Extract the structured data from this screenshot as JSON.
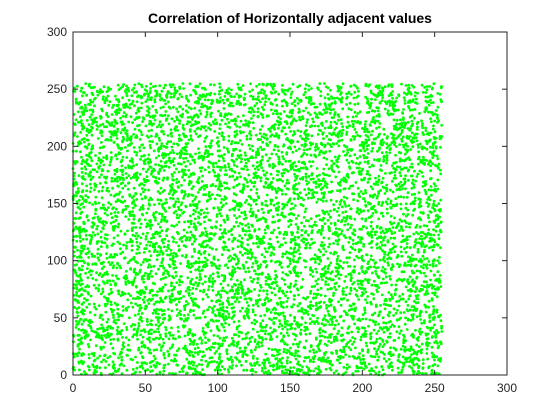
{
  "chart_data": {
    "type": "scatter",
    "title": "Correlation of Horizontally adjacent values",
    "xlabel": "",
    "ylabel": "",
    "xlim": [
      0,
      300
    ],
    "ylim": [
      0,
      300
    ],
    "xticks": [
      0,
      50,
      100,
      150,
      200,
      250,
      300
    ],
    "yticks": [
      0,
      50,
      100,
      150,
      200,
      250,
      300
    ],
    "grid": false,
    "box": true,
    "marker": "point",
    "series": [
      {
        "color": "#00ff00",
        "point_count": 7000,
        "x_range": [
          0,
          255
        ],
        "y_range": [
          0,
          255
        ],
        "distribution": "uniform (uncorrelated) over 0-255 on both axes"
      }
    ]
  }
}
